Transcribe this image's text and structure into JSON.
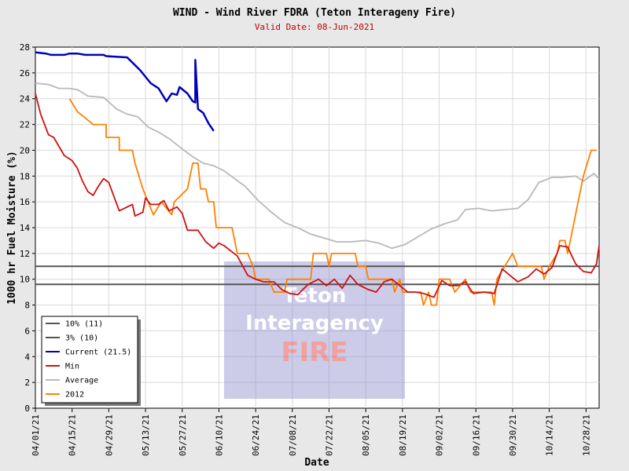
{
  "chart_data": {
    "type": "line",
    "title": "WIND - Wind River FDRA (Teton Interageny Fire)",
    "subtitle": "Valid Date: 08-Jun-2021",
    "xlabel": "Date",
    "ylabel": "1000 hr Fuel Moisture (%)",
    "x_start": "2021-04-01",
    "x_end": "2021-11-02",
    "ylim": [
      0,
      28
    ],
    "yticks": [
      0,
      2,
      4,
      6,
      8,
      10,
      12,
      14,
      16,
      18,
      20,
      22,
      24,
      26,
      28
    ],
    "xtick_labels": [
      "04/01/21",
      "04/15/21",
      "04/29/21",
      "05/13/21",
      "05/27/21",
      "06/10/21",
      "06/24/21",
      "07/08/21",
      "07/22/21",
      "08/05/21",
      "08/19/21",
      "09/02/21",
      "09/16/21",
      "09/30/21",
      "10/14/21",
      "10/28/21"
    ],
    "grid": true,
    "legend_position": "bottom-left",
    "watermark": {
      "line1": "Teton",
      "line2": "Interagency",
      "line3": "FIRE"
    },
    "reference_lines": [
      {
        "name": "10% (11)",
        "value": 11,
        "color": "#555555"
      },
      {
        "name": "3% (10)",
        "value": 9.6,
        "color": "#555555"
      }
    ],
    "series": [
      {
        "name": "Current (21.5)",
        "color": "#0000bb",
        "points": [
          [
            "2021-04-01",
            27.6
          ],
          [
            "2021-04-05",
            27.5
          ],
          [
            "2021-04-07",
            27.4
          ],
          [
            "2021-04-12",
            27.4
          ],
          [
            "2021-04-14",
            27.5
          ],
          [
            "2021-04-17",
            27.5
          ],
          [
            "2021-04-20",
            27.4
          ],
          [
            "2021-04-27",
            27.4
          ],
          [
            "2021-04-28",
            27.3
          ],
          [
            "2021-05-06",
            27.2
          ],
          [
            "2021-05-08",
            26.8
          ],
          [
            "2021-05-11",
            26.2
          ],
          [
            "2021-05-15",
            25.2
          ],
          [
            "2021-05-18",
            24.8
          ],
          [
            "2021-05-21",
            23.8
          ],
          [
            "2021-05-23",
            24.4
          ],
          [
            "2021-05-25",
            24.3
          ],
          [
            "2021-05-26",
            24.9
          ],
          [
            "2021-05-29",
            24.4
          ],
          [
            "2021-05-31",
            23.8
          ],
          [
            "2021-06-01",
            23.7
          ],
          [
            "2021-06-01",
            27.0
          ],
          [
            "2021-06-02",
            23.2
          ],
          [
            "2021-06-04",
            22.9
          ],
          [
            "2021-06-06",
            22.1
          ],
          [
            "2021-06-08",
            21.5
          ]
        ]
      },
      {
        "name": "Min",
        "color": "#d01010",
        "points": [
          [
            "2021-04-01",
            24.4
          ],
          [
            "2021-04-03",
            22.8
          ],
          [
            "2021-04-06",
            21.2
          ],
          [
            "2021-04-08",
            21.0
          ],
          [
            "2021-04-12",
            19.6
          ],
          [
            "2021-04-15",
            19.2
          ],
          [
            "2021-04-17",
            18.6
          ],
          [
            "2021-04-19",
            17.6
          ],
          [
            "2021-04-21",
            16.8
          ],
          [
            "2021-04-23",
            16.5
          ],
          [
            "2021-04-25",
            17.2
          ],
          [
            "2021-04-27",
            17.8
          ],
          [
            "2021-04-29",
            17.5
          ],
          [
            "2021-05-01",
            16.4
          ],
          [
            "2021-05-03",
            15.3
          ],
          [
            "2021-05-06",
            15.6
          ],
          [
            "2021-05-08",
            15.8
          ],
          [
            "2021-05-09",
            14.9
          ],
          [
            "2021-05-12",
            15.2
          ],
          [
            "2021-05-13",
            16.3
          ],
          [
            "2021-05-15",
            15.8
          ],
          [
            "2021-05-18",
            15.8
          ],
          [
            "2021-05-20",
            16.1
          ],
          [
            "2021-05-22",
            15.3
          ],
          [
            "2021-05-25",
            15.6
          ],
          [
            "2021-05-27",
            15.1
          ],
          [
            "2021-05-29",
            13.8
          ],
          [
            "2021-06-02",
            13.8
          ],
          [
            "2021-06-05",
            12.9
          ],
          [
            "2021-06-08",
            12.4
          ],
          [
            "2021-06-10",
            12.8
          ],
          [
            "2021-06-12",
            12.6
          ],
          [
            "2021-06-17",
            11.8
          ],
          [
            "2021-06-21",
            10.3
          ],
          [
            "2021-06-24",
            10.0
          ],
          [
            "2021-06-27",
            9.8
          ],
          [
            "2021-07-01",
            9.8
          ],
          [
            "2021-07-04",
            9.2
          ],
          [
            "2021-07-07",
            8.9
          ],
          [
            "2021-07-10",
            8.8
          ],
          [
            "2021-07-14",
            9.6
          ],
          [
            "2021-07-18",
            10.0
          ],
          [
            "2021-07-21",
            9.5
          ],
          [
            "2021-07-24",
            10.0
          ],
          [
            "2021-07-27",
            9.3
          ],
          [
            "2021-07-30",
            10.3
          ],
          [
            "2021-08-02",
            9.6
          ],
          [
            "2021-08-06",
            9.2
          ],
          [
            "2021-08-09",
            9.0
          ],
          [
            "2021-08-12",
            9.8
          ],
          [
            "2021-08-15",
            10.0
          ],
          [
            "2021-08-18",
            9.5
          ],
          [
            "2021-08-21",
            9.0
          ],
          [
            "2021-08-24",
            9.0
          ],
          [
            "2021-08-27",
            8.9
          ],
          [
            "2021-08-31",
            8.6
          ],
          [
            "2021-09-03",
            9.9
          ],
          [
            "2021-09-06",
            9.5
          ],
          [
            "2021-09-09",
            9.5
          ],
          [
            "2021-09-12",
            9.8
          ],
          [
            "2021-09-15",
            8.9
          ],
          [
            "2021-09-19",
            9.0
          ],
          [
            "2021-09-23",
            8.9
          ],
          [
            "2021-09-26",
            10.8
          ],
          [
            "2021-09-29",
            10.3
          ],
          [
            "2021-10-02",
            9.8
          ],
          [
            "2021-10-06",
            10.2
          ],
          [
            "2021-10-09",
            10.8
          ],
          [
            "2021-10-12",
            10.4
          ],
          [
            "2021-10-15",
            10.9
          ],
          [
            "2021-10-18",
            12.6
          ],
          [
            "2021-10-21",
            12.5
          ],
          [
            "2021-10-24",
            11.2
          ],
          [
            "2021-10-27",
            10.6
          ],
          [
            "2021-10-30",
            10.5
          ],
          [
            "2021-11-01",
            11.2
          ],
          [
            "2021-11-02",
            12.6
          ]
        ]
      },
      {
        "name": "Average",
        "color": "#b8b8b8",
        "points": [
          [
            "2021-04-01",
            25.2
          ],
          [
            "2021-04-06",
            25.1
          ],
          [
            "2021-04-10",
            24.8
          ],
          [
            "2021-04-14",
            24.8
          ],
          [
            "2021-04-17",
            24.7
          ],
          [
            "2021-04-21",
            24.2
          ],
          [
            "2021-04-27",
            24.1
          ],
          [
            "2021-05-02",
            23.2
          ],
          [
            "2021-05-06",
            22.8
          ],
          [
            "2021-05-10",
            22.6
          ],
          [
            "2021-05-14",
            21.8
          ],
          [
            "2021-05-18",
            21.4
          ],
          [
            "2021-05-22",
            20.9
          ],
          [
            "2021-05-27",
            20.1
          ],
          [
            "2021-05-31",
            19.5
          ],
          [
            "2021-06-04",
            19.0
          ],
          [
            "2021-06-08",
            18.8
          ],
          [
            "2021-06-12",
            18.4
          ],
          [
            "2021-06-16",
            17.8
          ],
          [
            "2021-06-20",
            17.2
          ],
          [
            "2021-06-25",
            16.1
          ],
          [
            "2021-06-30",
            15.2
          ],
          [
            "2021-07-05",
            14.4
          ],
          [
            "2021-07-10",
            14.0
          ],
          [
            "2021-07-15",
            13.5
          ],
          [
            "2021-07-20",
            13.2
          ],
          [
            "2021-07-25",
            12.9
          ],
          [
            "2021-07-30",
            12.9
          ],
          [
            "2021-08-05",
            13.0
          ],
          [
            "2021-08-10",
            12.8
          ],
          [
            "2021-08-15",
            12.4
          ],
          [
            "2021-08-20",
            12.7
          ],
          [
            "2021-08-25",
            13.3
          ],
          [
            "2021-08-30",
            13.9
          ],
          [
            "2021-09-04",
            14.3
          ],
          [
            "2021-09-09",
            14.6
          ],
          [
            "2021-09-12",
            15.4
          ],
          [
            "2021-09-17",
            15.5
          ],
          [
            "2021-09-22",
            15.3
          ],
          [
            "2021-09-27",
            15.4
          ],
          [
            "2021-10-02",
            15.5
          ],
          [
            "2021-10-06",
            16.2
          ],
          [
            "2021-10-10",
            17.5
          ],
          [
            "2021-10-15",
            17.9
          ],
          [
            "2021-10-19",
            17.9
          ],
          [
            "2021-10-24",
            18.0
          ],
          [
            "2021-10-27",
            17.6
          ],
          [
            "2021-10-31",
            18.2
          ],
          [
            "2021-11-02",
            17.8
          ]
        ]
      },
      {
        "name": "2012",
        "color": "#ff8000",
        "points": [
          [
            "2021-04-14",
            24.0
          ],
          [
            "2021-04-17",
            23.0
          ],
          [
            "2021-04-23",
            22.0
          ],
          [
            "2021-04-28",
            22.0
          ],
          [
            "2021-04-28",
            21.0
          ],
          [
            "2021-05-03",
            21.0
          ],
          [
            "2021-05-03",
            20.0
          ],
          [
            "2021-05-08",
            20.0
          ],
          [
            "2021-05-09",
            19.0
          ],
          [
            "2021-05-12",
            17.0
          ],
          [
            "2021-05-14",
            16.0
          ],
          [
            "2021-05-16",
            15.0
          ],
          [
            "2021-05-19",
            16.0
          ],
          [
            "2021-05-23",
            15.0
          ],
          [
            "2021-05-24",
            16.0
          ],
          [
            "2021-05-29",
            17.0
          ],
          [
            "2021-05-31",
            19.0
          ],
          [
            "2021-06-02",
            19.0
          ],
          [
            "2021-06-03",
            17.0
          ],
          [
            "2021-06-05",
            17.0
          ],
          [
            "2021-06-06",
            16.0
          ],
          [
            "2021-06-08",
            16.0
          ],
          [
            "2021-06-09",
            14.0
          ],
          [
            "2021-06-15",
            14.0
          ],
          [
            "2021-06-17",
            12.0
          ],
          [
            "2021-06-21",
            12.0
          ],
          [
            "2021-06-23",
            11.0
          ],
          [
            "2021-06-24",
            10.0
          ],
          [
            "2021-06-29",
            10.0
          ],
          [
            "2021-07-01",
            9.0
          ],
          [
            "2021-07-05",
            9.0
          ],
          [
            "2021-07-06",
            10.0
          ],
          [
            "2021-07-15",
            10.0
          ],
          [
            "2021-07-16",
            12.0
          ],
          [
            "2021-07-21",
            12.0
          ],
          [
            "2021-07-22",
            11.0
          ],
          [
            "2021-07-23",
            12.0
          ],
          [
            "2021-08-01",
            12.0
          ],
          [
            "2021-08-02",
            11.0
          ],
          [
            "2021-08-05",
            11.0
          ],
          [
            "2021-08-06",
            10.0
          ],
          [
            "2021-08-15",
            10.0
          ],
          [
            "2021-08-16",
            9.0
          ],
          [
            "2021-08-18",
            10.0
          ],
          [
            "2021-08-19",
            9.0
          ],
          [
            "2021-08-26",
            9.0
          ],
          [
            "2021-08-27",
            8.0
          ],
          [
            "2021-08-29",
            9.0
          ],
          [
            "2021-08-30",
            8.0
          ],
          [
            "2021-09-01",
            8.0
          ],
          [
            "2021-09-02",
            10.0
          ],
          [
            "2021-09-06",
            10.0
          ],
          [
            "2021-09-08",
            9.0
          ],
          [
            "2021-09-12",
            10.0
          ],
          [
            "2021-09-14",
            9.0
          ],
          [
            "2021-09-22",
            9.0
          ],
          [
            "2021-09-23",
            8.0
          ],
          [
            "2021-09-24",
            10.0
          ],
          [
            "2021-09-27",
            11.0
          ],
          [
            "2021-09-30",
            12.0
          ],
          [
            "2021-10-02",
            11.0
          ],
          [
            "2021-10-11",
            11.0
          ],
          [
            "2021-10-12",
            10.0
          ],
          [
            "2021-10-14",
            11.0
          ],
          [
            "2021-10-17",
            12.0
          ],
          [
            "2021-10-18",
            13.0
          ],
          [
            "2021-10-20",
            13.0
          ],
          [
            "2021-10-21",
            12.0
          ],
          [
            "2021-10-23",
            14.0
          ],
          [
            "2021-10-25",
            16.0
          ],
          [
            "2021-10-27",
            18.0
          ],
          [
            "2021-10-30",
            20.0
          ],
          [
            "2021-11-01",
            20.0
          ]
        ]
      }
    ]
  }
}
